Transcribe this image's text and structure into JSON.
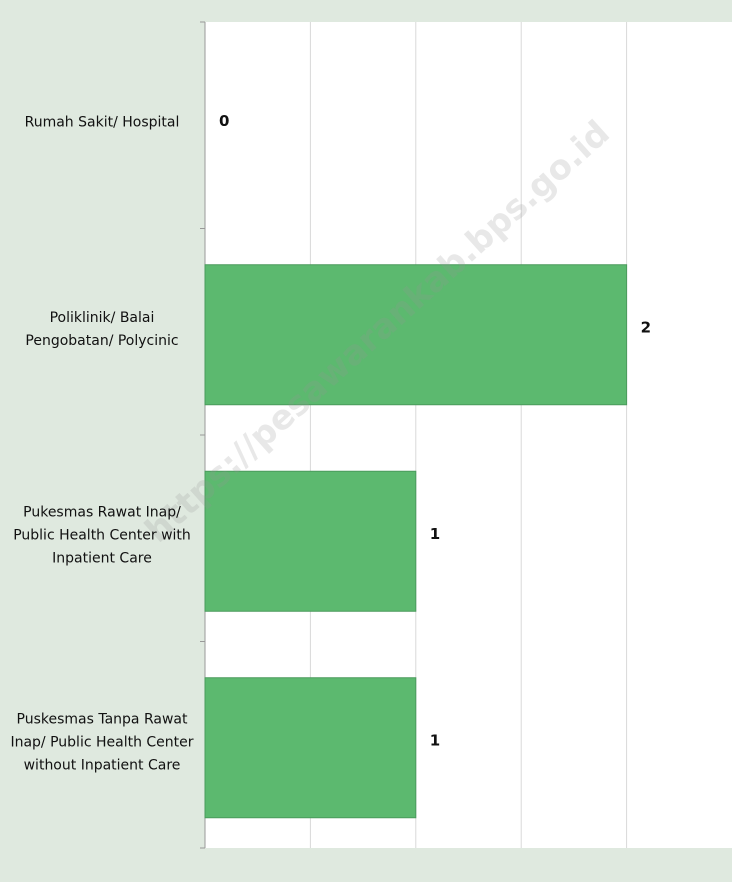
{
  "chart_data": {
    "type": "barh",
    "categories": [
      "Rumah Sakit/ Hospital",
      "Poliklinik/ Balai Pengobatan/ Polycinic",
      "Pukesmas Rawat Inap/ Public Health Center with Inpatient Care",
      "Puskesmas Tanpa Rawat Inap/ Public Health Center without Inpatient Care"
    ],
    "values": [
      0,
      2,
      1,
      1
    ],
    "color": "#5cb96f",
    "xlim": [
      0,
      2.5
    ],
    "xgrid": [
      0.5,
      1,
      1.5,
      2
    ],
    "watermark": "https://pesawarankab.bps.go.id"
  }
}
